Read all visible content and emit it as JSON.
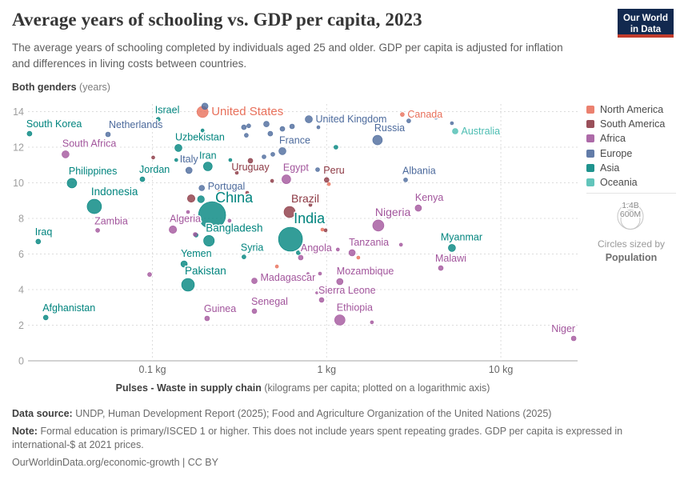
{
  "header": {
    "title": "Average years of schooling vs. GDP per capita, 2023",
    "subtitle": "The average years of schooling completed by individuals aged 25 and older. GDP per capita is adjusted for inflation and differences in living costs between countries.",
    "y_axis_title": "Both genders",
    "y_axis_unit": "(years)",
    "logo_line1": "Our World",
    "logo_line2": "in Data"
  },
  "legend": {
    "items": [
      {
        "label": "North America",
        "color": "#E8705B"
      },
      {
        "label": "South America",
        "color": "#8C3843"
      },
      {
        "label": "Africa",
        "color": "#A2559C"
      },
      {
        "label": "Europe",
        "color": "#4C6A9C"
      },
      {
        "label": "Asia",
        "color": "#00847E"
      },
      {
        "label": "Oceania",
        "color": "#4CBDB2"
      }
    ],
    "size_legend": {
      "outer_label": "1.4B",
      "inner_label": "600M",
      "caption": "Circles sized by",
      "caption_bold": "Population"
    }
  },
  "chart_data": {
    "type": "scatter",
    "title": "Average years of schooling vs. GDP per capita, 2023",
    "xlabel": "Pulses - Waste in supply chain (kilograms per capita; plotted on a logarithmic axis)",
    "xlabel_bold": "Pulses - Waste in supply chain",
    "xlabel_rest": " (kilograms per capita; plotted on a logarithmic axis)",
    "ylabel": "Both genders (years)",
    "x_scale": "log",
    "x_range": [
      0.019,
      27.5
    ],
    "y_range": [
      0,
      14.4
    ],
    "grid": true,
    "x_ticks": [
      {
        "value": 0.1,
        "label": "0.1 kg"
      },
      {
        "value": 1,
        "label": "1 kg"
      },
      {
        "value": 10,
        "label": "10 kg"
      }
    ],
    "y_ticks": [
      0,
      2,
      4,
      6,
      8,
      10,
      12,
      14
    ],
    "regions": {
      "North America": "#E8705B",
      "South America": "#8C3843",
      "Africa": "#A2559C",
      "Europe": "#4C6A9C",
      "Asia": "#00847E",
      "Oceania": "#4CBDB2"
    },
    "points": [
      {
        "name": "South Korea",
        "region": "Asia",
        "x": 0.0197,
        "y": 12.76,
        "r": 3,
        "lp": "ar"
      },
      {
        "name": "Israel",
        "region": "Asia",
        "x": 0.108,
        "y": 13.57,
        "r": 2.5,
        "lp": "ar"
      },
      {
        "name": "United States",
        "region": "North America",
        "x": 0.194,
        "y": 13.98,
        "r": 7,
        "lp": "r",
        "fs": 15
      },
      {
        "name": "Netherlands",
        "region": "Europe",
        "x": 0.0556,
        "y": 12.72,
        "r": 3,
        "lp": "ar",
        "ldx": 5
      },
      {
        "name": "South Africa",
        "region": "Africa",
        "x": 0.0317,
        "y": 11.6,
        "r": 4.5,
        "lp": "ar"
      },
      {
        "name": "Uzbekistan",
        "region": "Asia",
        "x": 0.141,
        "y": 11.96,
        "r": 4.5,
        "lp": "ar"
      },
      {
        "name": "Philippines",
        "region": "Asia",
        "x": 0.0345,
        "y": 9.98,
        "r": 6,
        "lp": "ar"
      },
      {
        "name": "Jordan",
        "region": "Asia",
        "x": 0.0876,
        "y": 10.2,
        "r": 3,
        "lp": "ar"
      },
      {
        "name": "Italy",
        "region": "Europe",
        "x": 0.162,
        "y": 10.7,
        "r": 4,
        "lp": "a",
        "ldy": -2
      },
      {
        "name": "Iran",
        "region": "Asia",
        "x": 0.208,
        "y": 10.92,
        "r": 5.5,
        "lp": "a"
      },
      {
        "name": "Uruguay",
        "region": "South America",
        "x": 0.365,
        "y": 11.24,
        "r": 3,
        "lp": "b",
        "ldy": -3
      },
      {
        "name": "Portugal",
        "region": "Europe",
        "x": 0.192,
        "y": 9.71,
        "r": 3.5,
        "lp": "r",
        "ldy": -2
      },
      {
        "name": "Egypt",
        "region": "Africa",
        "x": 0.587,
        "y": 10.2,
        "r": 5.5,
        "lp": "ar"
      },
      {
        "name": "Peru",
        "region": "South America",
        "x": 1.0,
        "y": 10.16,
        "r": 3,
        "lp": "ar"
      },
      {
        "name": "France",
        "region": "Europe",
        "x": 0.557,
        "y": 11.78,
        "r": 4.5,
        "lp": "ar"
      },
      {
        "name": "United Kingdom",
        "region": "Europe",
        "x": 0.79,
        "y": 13.57,
        "r": 4.5,
        "lp": "r"
      },
      {
        "name": "Russia",
        "region": "Europe",
        "x": 1.96,
        "y": 12.4,
        "r": 6,
        "lp": "ar"
      },
      {
        "name": "Canada",
        "region": "North America",
        "x": 2.72,
        "y": 13.84,
        "r": 2.5,
        "lp": "r"
      },
      {
        "name": "Australia",
        "region": "Oceania",
        "x": 5.47,
        "y": 12.9,
        "r": 3.5,
        "lp": "r"
      },
      {
        "name": "Albania",
        "region": "Europe",
        "x": 2.84,
        "y": 10.16,
        "r": 2.5,
        "lp": "ar"
      },
      {
        "name": "Kenya",
        "region": "Africa",
        "x": 3.36,
        "y": 8.58,
        "r": 4,
        "lp": "ar"
      },
      {
        "name": "Brazil",
        "region": "South America",
        "x": 0.613,
        "y": 8.36,
        "r": 7,
        "lp": "ar",
        "ldx": 6,
        "fs": 14
      },
      {
        "name": "India",
        "region": "Asia",
        "x": 0.62,
        "y": 6.83,
        "r": 15,
        "lp": "ar",
        "ldx": 8,
        "fs": 18
      },
      {
        "name": "Nigeria",
        "region": "Africa",
        "x": 1.98,
        "y": 7.6,
        "r": 7,
        "lp": "ar",
        "fs": 14
      },
      {
        "name": "China",
        "region": "Asia",
        "x": 0.22,
        "y": 8.18,
        "r": 17,
        "lp": "ar",
        "ldx": 8,
        "ldy": 6,
        "fs": 18
      },
      {
        "name": "Indonesia",
        "region": "Asia",
        "x": 0.0464,
        "y": 8.67,
        "r": 9,
        "lp": "ar",
        "fs": 13.5
      },
      {
        "name": "Zambia",
        "region": "Africa",
        "x": 0.0485,
        "y": 7.33,
        "r": 2.5,
        "lp": "ar"
      },
      {
        "name": "Iraq",
        "region": "Asia",
        "x": 0.0221,
        "y": 6.7,
        "r": 3,
        "lp": "ar"
      },
      {
        "name": "Algeria",
        "region": "Africa",
        "x": 0.131,
        "y": 7.37,
        "r": 4.7,
        "lp": "ar"
      },
      {
        "name": "Bangladesh",
        "region": "Asia",
        "x": 0.211,
        "y": 6.74,
        "r": 6.7,
        "lp": "ar",
        "fs": 13.5
      },
      {
        "name": "Afghanistan",
        "region": "Asia",
        "x": 0.0244,
        "y": 2.43,
        "r": 3,
        "lp": "ar"
      },
      {
        "name": "Yemen",
        "region": "Asia",
        "x": 0.152,
        "y": 5.44,
        "r": 4,
        "lp": "ar"
      },
      {
        "name": "Pakistan",
        "region": "Asia",
        "x": 0.16,
        "y": 4.27,
        "r": 8,
        "lp": "ar",
        "fs": 13.5
      },
      {
        "name": "Guinea",
        "region": "Africa",
        "x": 0.206,
        "y": 2.38,
        "r": 3,
        "lp": "ar"
      },
      {
        "name": "Senegal",
        "region": "Africa",
        "x": 0.385,
        "y": 2.79,
        "r": 3,
        "lp": "ar"
      },
      {
        "name": "Madagascar",
        "region": "Africa",
        "x": 0.385,
        "y": 4.49,
        "r": 3.5,
        "lp": "r",
        "ldy": -4
      },
      {
        "name": "Syria",
        "region": "Asia",
        "x": 0.335,
        "y": 5.84,
        "r": 2.5,
        "lp": "ar"
      },
      {
        "name": "Angola",
        "region": "Africa",
        "x": 0.71,
        "y": 5.8,
        "r": 3,
        "lp": "ar",
        "ldx": 4
      },
      {
        "name": "Tanzania",
        "region": "Africa",
        "x": 1.4,
        "y": 6.07,
        "r": 4,
        "lp": "ar"
      },
      {
        "name": "Myanmar",
        "region": "Asia",
        "x": 5.24,
        "y": 6.34,
        "r": 4.5,
        "lp": "ar",
        "ldx": -10
      },
      {
        "name": "Malawi",
        "region": "Africa",
        "x": 4.52,
        "y": 5.21,
        "r": 3,
        "lp": "ar",
        "ldx": -3
      },
      {
        "name": "Mozambique",
        "region": "Africa",
        "x": 1.19,
        "y": 4.45,
        "r": 4,
        "lp": "ar"
      },
      {
        "name": "Sierra Leone",
        "region": "Africa",
        "x": 0.936,
        "y": 3.42,
        "r": 3,
        "lp": "ar"
      },
      {
        "name": "Ethiopia",
        "region": "Africa",
        "x": 1.19,
        "y": 2.29,
        "r": 6.5,
        "lp": "ar"
      },
      {
        "name": "Niger",
        "region": "Africa",
        "x": 26.2,
        "y": 1.26,
        "r": 3,
        "lp": "al"
      }
    ],
    "extra_points": {
      "Europe": [
        [
          0.2,
          14.3,
          4
        ],
        [
          0.335,
          13.12,
          3
        ],
        [
          0.357,
          13.2,
          2.5
        ],
        [
          0.451,
          13.3,
          3.5
        ],
        [
          0.557,
          13.03,
          3
        ],
        [
          0.633,
          13.17,
          3
        ],
        [
          0.897,
          13.12,
          2
        ],
        [
          0.346,
          12.67,
          2.5
        ],
        [
          0.475,
          12.76,
          3
        ],
        [
          0.437,
          11.46,
          2.5
        ],
        [
          0.491,
          11.6,
          2.5
        ],
        [
          4.24,
          13.66,
          2
        ],
        [
          2.96,
          13.48,
          2.5
        ],
        [
          5.24,
          13.35,
          2
        ],
        [
          0.887,
          10.74,
          2.5
        ]
      ],
      "Asia": [
        [
          0.194,
          12.94,
          2
        ],
        [
          0.137,
          11.28,
          2
        ],
        [
          0.28,
          11.28,
          2
        ],
        [
          1.13,
          12.0,
          2.5
        ],
        [
          0.178,
          7.06,
          2.5
        ],
        [
          0.19,
          9.08,
          4.3
        ],
        [
          0.362,
          9.03,
          2.5
        ],
        [
          0.688,
          6.07,
          2.5
        ]
      ],
      "South America": [
        [
          0.101,
          11.42,
          2
        ],
        [
          0.305,
          10.56,
          2
        ],
        [
          0.486,
          10.11,
          2
        ],
        [
          0.35,
          9.44,
          2
        ],
        [
          0.167,
          9.12,
          4.7
        ],
        [
          0.807,
          8.76,
          2
        ],
        [
          0.986,
          7.33,
          2
        ]
      ],
      "North America": [
        [
          0.244,
          9.53,
          2.5
        ],
        [
          0.518,
          5.3,
          2
        ],
        [
          0.945,
          7.37,
          2
        ],
        [
          1.03,
          9.93,
          2
        ],
        [
          1.52,
          5.8,
          2
        ]
      ],
      "Africa": [
        [
          0.0963,
          4.85,
          2.5
        ],
        [
          0.16,
          8.36,
          2
        ],
        [
          0.277,
          7.87,
          2
        ],
        [
          0.176,
          7.1,
          2.5
        ],
        [
          0.782,
          4.9,
          1.5
        ],
        [
          0.916,
          4.9,
          2
        ],
        [
          0.878,
          3.82,
          1.5
        ],
        [
          1.82,
          2.16,
          2
        ],
        [
          2.67,
          6.52,
          2
        ],
        [
          1.16,
          6.25,
          2
        ]
      ]
    }
  },
  "footer": {
    "source_label": "Data source:",
    "source_text": "UNDP, Human Development Report (2025); Food and Agriculture Organization of the United Nations (2025)",
    "note_label": "Note:",
    "note_text": "Formal education is primary/ISCED 1 or higher. This does not include years spent repeating grades. GDP per capita is expressed in international-$ at 2021 prices.",
    "url": "OurWorldinData.org/economic-growth | CC BY"
  }
}
